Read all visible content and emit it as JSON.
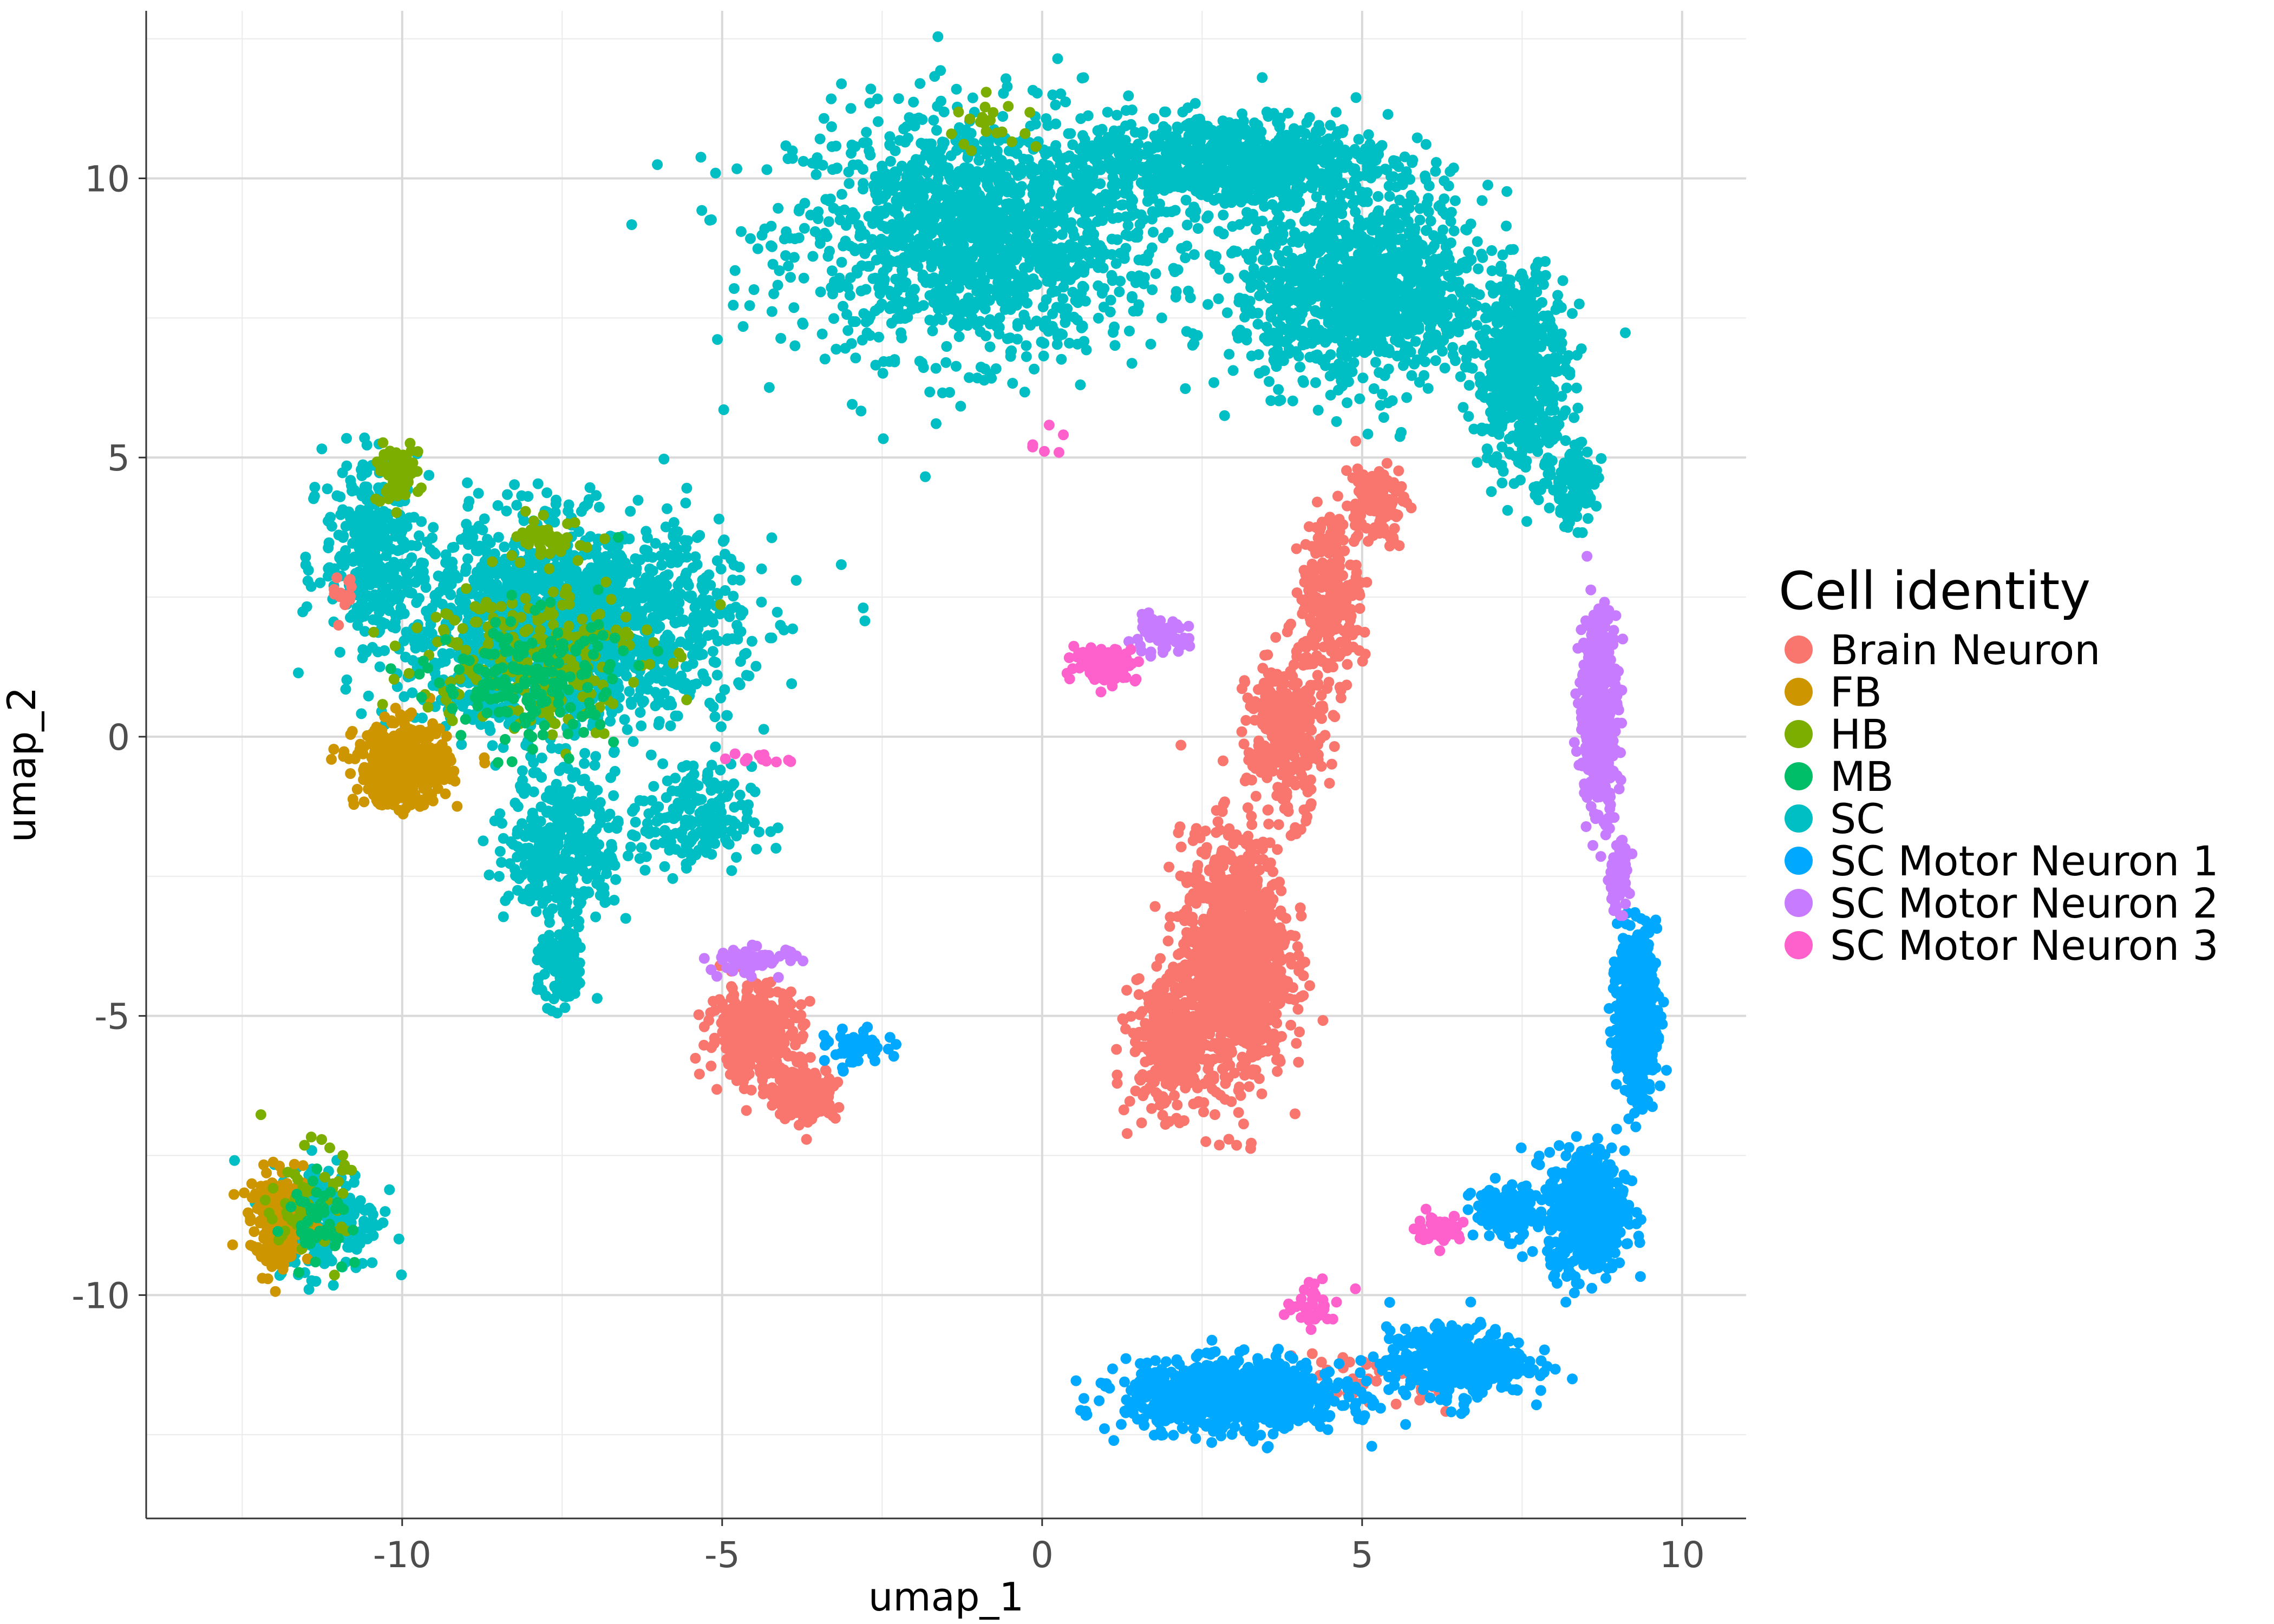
{
  "chart_data": {
    "type": "scatter",
    "title": "",
    "xlabel": "umap_1",
    "ylabel": "umap_2",
    "xlim": [
      -14.0,
      11.0
    ],
    "ylim": [
      -14.0,
      13.0
    ],
    "xticks": [
      -10,
      -5,
      0,
      5,
      10
    ],
    "yticks": [
      -10,
      -5,
      0,
      5,
      10
    ],
    "xtick_labels": [
      "-10",
      "-5",
      "0",
      "5",
      "10"
    ],
    "ytick_labels": [
      "-10",
      "-5",
      "0",
      "5",
      "10"
    ],
    "grid": true,
    "legend": {
      "title": "Cell identity",
      "placement": "right",
      "entries": [
        {
          "name": "Brain Neuron",
          "color": "#F8766D"
        },
        {
          "name": "FB",
          "color": "#CD9600"
        },
        {
          "name": "HB",
          "color": "#7CAE00"
        },
        {
          "name": "MB",
          "color": "#00BE67"
        },
        {
          "name": "SC",
          "color": "#00BFC4"
        },
        {
          "name": "SC Motor Neuron 1",
          "color": "#00A9FF"
        },
        {
          "name": "SC Motor Neuron 2",
          "color": "#C77CFF"
        },
        {
          "name": "SC Motor Neuron 3",
          "color": "#FF61CC"
        }
      ]
    },
    "series": [
      {
        "name": "SC",
        "color": "#00BFC4",
        "clusters": [
          {
            "x": -1.0,
            "y": 9.0,
            "sx": 2.4,
            "sy": 1.8,
            "n": 1500
          },
          {
            "x": 3.0,
            "y": 10.3,
            "sx": 2.0,
            "sy": 0.7,
            "n": 800
          },
          {
            "x": 5.0,
            "y": 8.0,
            "sx": 1.6,
            "sy": 1.4,
            "n": 1200
          },
          {
            "x": 7.5,
            "y": 6.5,
            "sx": 0.6,
            "sy": 1.5,
            "n": 500
          },
          {
            "x": 8.3,
            "y": 4.5,
            "sx": 0.3,
            "sy": 0.6,
            "n": 120
          },
          {
            "x": -7.5,
            "y": 2.0,
            "sx": 2.2,
            "sy": 1.5,
            "n": 1800
          },
          {
            "x": -10.5,
            "y": 3.5,
            "sx": 0.6,
            "sy": 1.2,
            "n": 300
          },
          {
            "x": -7.5,
            "y": -2.0,
            "sx": 0.7,
            "sy": 1.2,
            "n": 350
          },
          {
            "x": -7.5,
            "y": -4.2,
            "sx": 0.3,
            "sy": 0.6,
            "n": 120
          },
          {
            "x": -5.5,
            "y": -1.5,
            "sx": 0.8,
            "sy": 0.8,
            "n": 200
          },
          {
            "x": -11.2,
            "y": -8.6,
            "sx": 0.7,
            "sy": 0.8,
            "n": 250
          }
        ]
      },
      {
        "name": "Brain Neuron",
        "color": "#F8766D",
        "clusters": [
          {
            "x": 3.0,
            "y": -4.0,
            "sx": 0.7,
            "sy": 1.8,
            "n": 1100
          },
          {
            "x": 2.0,
            "y": -5.5,
            "sx": 0.5,
            "sy": 1.0,
            "n": 350
          },
          {
            "x": 3.8,
            "y": 0.0,
            "sx": 0.5,
            "sy": 1.2,
            "n": 300
          },
          {
            "x": 4.5,
            "y": 2.5,
            "sx": 0.4,
            "sy": 1.2,
            "n": 250
          },
          {
            "x": 5.2,
            "y": 4.2,
            "sx": 0.4,
            "sy": 0.6,
            "n": 120
          },
          {
            "x": -4.5,
            "y": -5.3,
            "sx": 0.6,
            "sy": 0.7,
            "n": 350
          },
          {
            "x": -3.7,
            "y": -6.4,
            "sx": 0.4,
            "sy": 0.4,
            "n": 200
          },
          {
            "x": -10.9,
            "y": 2.5,
            "sx": 0.2,
            "sy": 0.3,
            "n": 15
          },
          {
            "x": 5.0,
            "y": -11.5,
            "sx": 1.2,
            "sy": 0.4,
            "n": 60
          }
        ]
      },
      {
        "name": "FB",
        "color": "#CD9600",
        "clusters": [
          {
            "x": -10.0,
            "y": -0.5,
            "sx": 0.6,
            "sy": 0.6,
            "n": 450
          },
          {
            "x": -11.9,
            "y": -8.7,
            "sx": 0.4,
            "sy": 0.7,
            "n": 200
          }
        ]
      },
      {
        "name": "HB",
        "color": "#7CAE00",
        "clusters": [
          {
            "x": -10.1,
            "y": 4.7,
            "sx": 0.3,
            "sy": 0.4,
            "n": 80
          },
          {
            "x": -8.0,
            "y": 1.5,
            "sx": 1.5,
            "sy": 1.2,
            "n": 220
          },
          {
            "x": -7.6,
            "y": 3.5,
            "sx": 0.5,
            "sy": 0.3,
            "n": 50
          },
          {
            "x": -11.5,
            "y": -8.3,
            "sx": 0.5,
            "sy": 0.8,
            "n": 60
          },
          {
            "x": -0.8,
            "y": 11.0,
            "sx": 0.6,
            "sy": 0.4,
            "n": 20
          }
        ]
      },
      {
        "name": "MB",
        "color": "#00BE67",
        "clusters": [
          {
            "x": -8.0,
            "y": 1.0,
            "sx": 1.2,
            "sy": 1.0,
            "n": 180
          },
          {
            "x": -11.3,
            "y": -8.6,
            "sx": 0.4,
            "sy": 0.6,
            "n": 50
          }
        ]
      },
      {
        "name": "SC Motor Neuron 1",
        "color": "#00A9FF",
        "clusters": [
          {
            "x": 9.3,
            "y": -5.0,
            "sx": 0.25,
            "sy": 1.2,
            "n": 700
          },
          {
            "x": 8.5,
            "y": -8.5,
            "sx": 0.5,
            "sy": 0.9,
            "n": 600
          },
          {
            "x": 6.5,
            "y": -11.2,
            "sx": 0.9,
            "sy": 0.5,
            "n": 500
          },
          {
            "x": 3.0,
            "y": -11.8,
            "sx": 1.4,
            "sy": 0.5,
            "n": 900
          },
          {
            "x": 7.2,
            "y": -8.5,
            "sx": 0.4,
            "sy": 0.4,
            "n": 120
          },
          {
            "x": -2.9,
            "y": -5.6,
            "sx": 0.4,
            "sy": 0.3,
            "n": 50
          }
        ]
      },
      {
        "name": "SC Motor Neuron 2",
        "color": "#C77CFF",
        "clusters": [
          {
            "x": 8.7,
            "y": 0.5,
            "sx": 0.25,
            "sy": 1.5,
            "n": 450
          },
          {
            "x": 9.0,
            "y": -2.5,
            "sx": 0.15,
            "sy": 0.5,
            "n": 80
          },
          {
            "x": 1.8,
            "y": 1.8,
            "sx": 0.4,
            "sy": 0.25,
            "n": 60
          },
          {
            "x": -4.5,
            "y": -4.0,
            "sx": 0.6,
            "sy": 0.2,
            "n": 60
          }
        ]
      },
      {
        "name": "SC Motor Neuron 3",
        "color": "#FF61CC",
        "clusters": [
          {
            "x": 1.0,
            "y": 1.3,
            "sx": 0.4,
            "sy": 0.25,
            "n": 150
          },
          {
            "x": 6.2,
            "y": -8.8,
            "sx": 0.3,
            "sy": 0.2,
            "n": 60
          },
          {
            "x": 4.3,
            "y": -10.2,
            "sx": 0.4,
            "sy": 0.3,
            "n": 40
          },
          {
            "x": -4.3,
            "y": -0.4,
            "sx": 0.4,
            "sy": 0.1,
            "n": 12
          },
          {
            "x": 0.0,
            "y": 5.3,
            "sx": 0.3,
            "sy": 0.3,
            "n": 6
          }
        ]
      }
    ]
  }
}
